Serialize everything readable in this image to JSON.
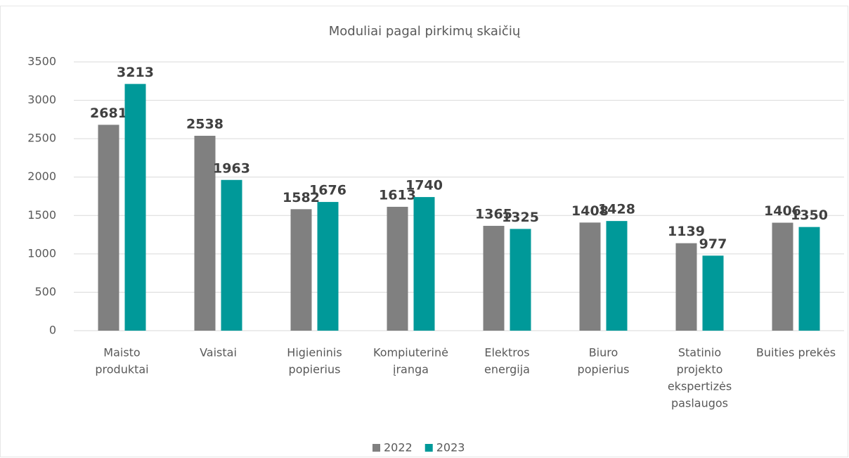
{
  "chart_data": {
    "type": "bar",
    "title": "Moduliai pagal pirkimų skaičių",
    "categories": [
      [
        "Maisto",
        "produktai"
      ],
      [
        "Vaistai"
      ],
      [
        "Higieninis",
        "popierius"
      ],
      [
        "Kompiuterinė",
        "įranga"
      ],
      [
        "Elektros",
        "energija"
      ],
      [
        "Biuro",
        "popierius"
      ],
      [
        "Statinio",
        "projekto",
        "ekspertizės",
        "paslaugos"
      ],
      [
        "Buities prekės"
      ]
    ],
    "series": [
      {
        "name": "2022",
        "color": "#808080",
        "values": [
          2681,
          2538,
          1582,
          1613,
          1365,
          1408,
          1139,
          1406
        ]
      },
      {
        "name": "2023",
        "color": "#009999",
        "values": [
          3213,
          1963,
          1676,
          1740,
          1325,
          1428,
          977,
          1350
        ]
      }
    ],
    "ylim": [
      0,
      3500
    ],
    "yticks": [
      0,
      500,
      1000,
      1500,
      2000,
      2500,
      3000,
      3500
    ],
    "grid": true,
    "legend": "bottom"
  }
}
